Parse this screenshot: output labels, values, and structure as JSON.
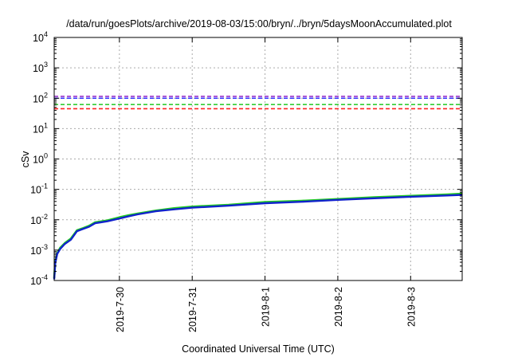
{
  "chart_data": {
    "type": "line",
    "title": "/data/run/goesPlots/archive/2019-08-03/15:00/bryn/../bryn/5daysMoonAccumulated.plot",
    "xlabel": "Coordinated Universal Time (UTC)",
    "ylabel": "cSv",
    "y_scale": "log",
    "ylim": [
      0.0001,
      10000
    ],
    "y_ticks": [
      {
        "value": 0.0001,
        "base": "10",
        "exp": "-4"
      },
      {
        "value": 0.001,
        "base": "10",
        "exp": "-3"
      },
      {
        "value": 0.01,
        "base": "10",
        "exp": "-2"
      },
      {
        "value": 0.1,
        "base": "10",
        "exp": "-1"
      },
      {
        "value": 1,
        "base": "10",
        "exp": "0"
      },
      {
        "value": 10,
        "base": "10",
        "exp": "1"
      },
      {
        "value": 100,
        "base": "10",
        "exp": "2"
      },
      {
        "value": 1000,
        "base": "10",
        "exp": "3"
      },
      {
        "value": 10000,
        "base": "10",
        "exp": "4"
      }
    ],
    "xlim": [
      "2019-07-29 02:30",
      "2019-08-03 17:00"
    ],
    "x_ticks": [
      "2019-7-30",
      "2019-7-31",
      "2019-8-1",
      "2019-8-2",
      "2019-8-3"
    ],
    "grid": true,
    "thresholds": [
      {
        "value": 115,
        "color": "#9933cc"
      },
      {
        "value": 100,
        "color": "#3333ff"
      },
      {
        "value": 62,
        "color": "#33cc33"
      },
      {
        "value": 45,
        "color": "#ff2222"
      }
    ],
    "series": [
      {
        "color": "#22cc22",
        "x": [
          "2019-07-29 02:30",
          "2019-07-29 02:50",
          "2019-07-29 03:30",
          "2019-07-29 04:30",
          "2019-07-29 06:00",
          "2019-07-29 08:00",
          "2019-07-29 10:00",
          "2019-07-29 12:00",
          "2019-07-29 14:00",
          "2019-07-29 16:00",
          "2019-07-29 20:00",
          "2019-07-30 00:00",
          "2019-07-30 03:00",
          "2019-07-30 06:00",
          "2019-07-30 12:00",
          "2019-07-30 18:00",
          "2019-07-31 00:00",
          "2019-07-31 12:00",
          "2019-08-01 00:00",
          "2019-08-01 12:00",
          "2019-08-02 00:00",
          "2019-08-02 12:00",
          "2019-08-03 00:00",
          "2019-08-03 12:00",
          "2019-08-03 17:00"
        ],
        "y": [
          0.00012,
          0.0004,
          0.0008,
          0.0012,
          0.0017,
          0.0024,
          0.0045,
          0.0053,
          0.0063,
          0.0082,
          0.0095,
          0.012,
          0.014,
          0.016,
          0.02,
          0.024,
          0.027,
          0.031,
          0.038,
          0.042,
          0.048,
          0.055,
          0.061,
          0.068,
          0.072
        ]
      },
      {
        "color": "#1122cc",
        "x": [
          "2019-07-29 02:30",
          "2019-07-29 02:50",
          "2019-07-29 03:30",
          "2019-07-29 04:30",
          "2019-07-29 06:00",
          "2019-07-29 08:00",
          "2019-07-29 10:00",
          "2019-07-29 12:00",
          "2019-07-29 14:00",
          "2019-07-29 16:00",
          "2019-07-29 20:00",
          "2019-07-30 00:00",
          "2019-07-30 03:00",
          "2019-07-30 06:00",
          "2019-07-30 12:00",
          "2019-07-30 18:00",
          "2019-07-31 00:00",
          "2019-07-31 12:00",
          "2019-08-01 00:00",
          "2019-08-01 12:00",
          "2019-08-02 00:00",
          "2019-08-02 12:00",
          "2019-08-03 00:00",
          "2019-08-03 12:00",
          "2019-08-03 17:00"
        ],
        "y": [
          0.00011,
          0.00037,
          0.00075,
          0.0011,
          0.0016,
          0.0022,
          0.0042,
          0.005,
          0.0059,
          0.0077,
          0.0089,
          0.011,
          0.013,
          0.015,
          0.019,
          0.022,
          0.025,
          0.029,
          0.035,
          0.039,
          0.045,
          0.051,
          0.057,
          0.063,
          0.066
        ]
      }
    ]
  }
}
